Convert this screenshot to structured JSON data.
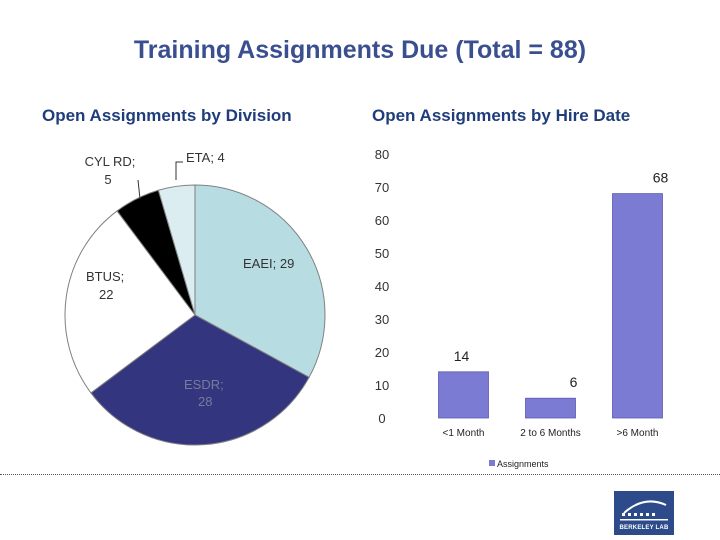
{
  "title": "Training Assignments Due (Total = 88)",
  "chart_data": [
    {
      "type": "pie",
      "title": "Open Assignments by Division",
      "slices": [
        {
          "name": "EAEI",
          "value": 29,
          "label": "EAEI; 29",
          "color": "#b7dde3"
        },
        {
          "name": "ESDR",
          "value": 28,
          "label": "ESDR; 28",
          "color": "#33357f"
        },
        {
          "name": "BTUS",
          "value": 22,
          "label": "BTUS; 22",
          "color": "#ffffff"
        },
        {
          "name": "CYL RD",
          "value": 5,
          "label": "CYL RD; 5",
          "color": "#000000"
        },
        {
          "name": "ETA",
          "value": 4,
          "label": "ETA; 4",
          "color": "#dcedf1"
        }
      ],
      "label_lines": {
        "cyl": [
          "CYL RD;",
          "5"
        ],
        "btus": [
          "BTUS;",
          "22"
        ],
        "esdr": [
          "ESDR;",
          "28"
        ]
      }
    },
    {
      "type": "bar",
      "title": "Open Assignments by Hire Date",
      "categories": [
        "<1 Month",
        "2 to 6 Months",
        ">6 Month"
      ],
      "series": [
        {
          "name": "Assignments",
          "values": [
            14,
            6,
            68
          ],
          "color": "#7b7bd4"
        }
      ],
      "ylim": [
        0,
        80
      ],
      "yticks": [
        "0",
        "10",
        "20",
        "30",
        "40",
        "50",
        "60",
        "70",
        "80"
      ],
      "legend": "bottom"
    }
  ],
  "logo": {
    "text": "BERKELEY LAB",
    "color": "#2d4a8a"
  }
}
